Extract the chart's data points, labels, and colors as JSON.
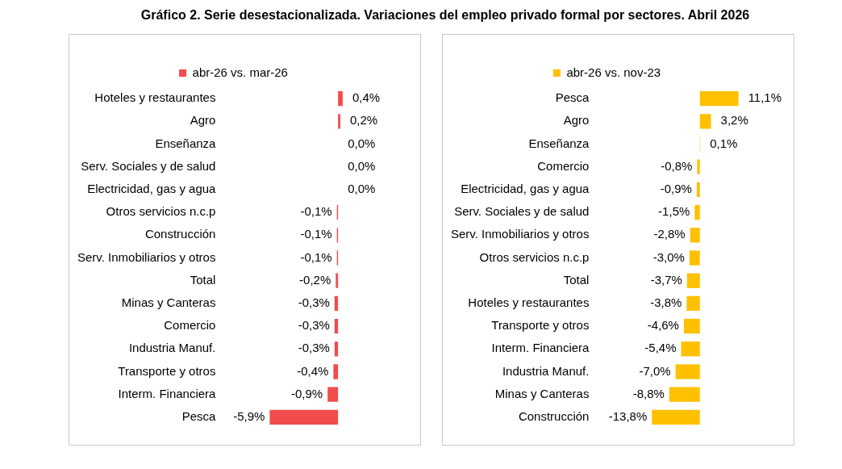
{
  "chart_data": [
    {
      "type": "bar",
      "orientation": "horizontal",
      "title": "Gráfico 2. Serie desestacionalizada. Variaciones del empleo privado formal por sectores. Abril 2026",
      "categories": [
        "Hoteles y restaurantes",
        "Agro",
        "Enseñanza",
        "Serv. Sociales y de salud",
        "Electricidad, gas y agua",
        "Otros servicios n.c.p",
        "Construcción",
        "Serv. Inmobiliarios y otros",
        "Total",
        "Minas y Canteras",
        "Comercio",
        "Industria Manuf.",
        "Transporte y otros",
        "Interm. Financiera",
        "Pesca"
      ],
      "series": [
        {
          "name": "abr-26 vs. mar-26",
          "color": "#f24c4c",
          "values": [
            0.4,
            0.2,
            0.0,
            0.0,
            0.0,
            -0.1,
            -0.1,
            -0.1,
            -0.2,
            -0.3,
            -0.3,
            -0.3,
            -0.4,
            -0.9,
            -5.9
          ],
          "value_labels": [
            "0,4%",
            "0,2%",
            "0,0%",
            "0,0%",
            "0,0%",
            "-0,1%",
            "-0,1%",
            "-0,1%",
            "-0,2%",
            "-0,3%",
            "-0,3%",
            "-0,3%",
            "-0,4%",
            "-0,9%",
            "-5,9%"
          ]
        }
      ],
      "legend": "top",
      "grid": false
    },
    {
      "type": "bar",
      "orientation": "horizontal",
      "categories": [
        "Pesca",
        "Agro",
        "Enseñanza",
        "Comercio",
        "Electricidad, gas y agua",
        "Serv. Sociales y de salud",
        "Serv. Inmobiliarios y otros",
        "Otros servicios n.c.p",
        "Total",
        "Hoteles y restaurantes",
        "Transporte y otros",
        "Interm. Financiera",
        "Industria Manuf.",
        "Minas y Canteras",
        "Construcción"
      ],
      "series": [
        {
          "name": "abr-26 vs. nov-23",
          "color": "#ffc000",
          "values": [
            11.1,
            3.2,
            0.1,
            -0.8,
            -0.9,
            -1.5,
            -2.8,
            -3.0,
            -3.7,
            -3.8,
            -4.6,
            -5.4,
            -7.0,
            -8.8,
            -13.8
          ],
          "value_labels": [
            "11,1%",
            "3,2%",
            "0,1%",
            "-0,8%",
            "-0,9%",
            "-1,5%",
            "-2,8%",
            "-3,0%",
            "-3,7%",
            "-3,8%",
            "-4,6%",
            "-5,4%",
            "-7,0%",
            "-8,8%",
            "-13,8%"
          ]
        }
      ],
      "legend": "top",
      "grid": false
    }
  ]
}
